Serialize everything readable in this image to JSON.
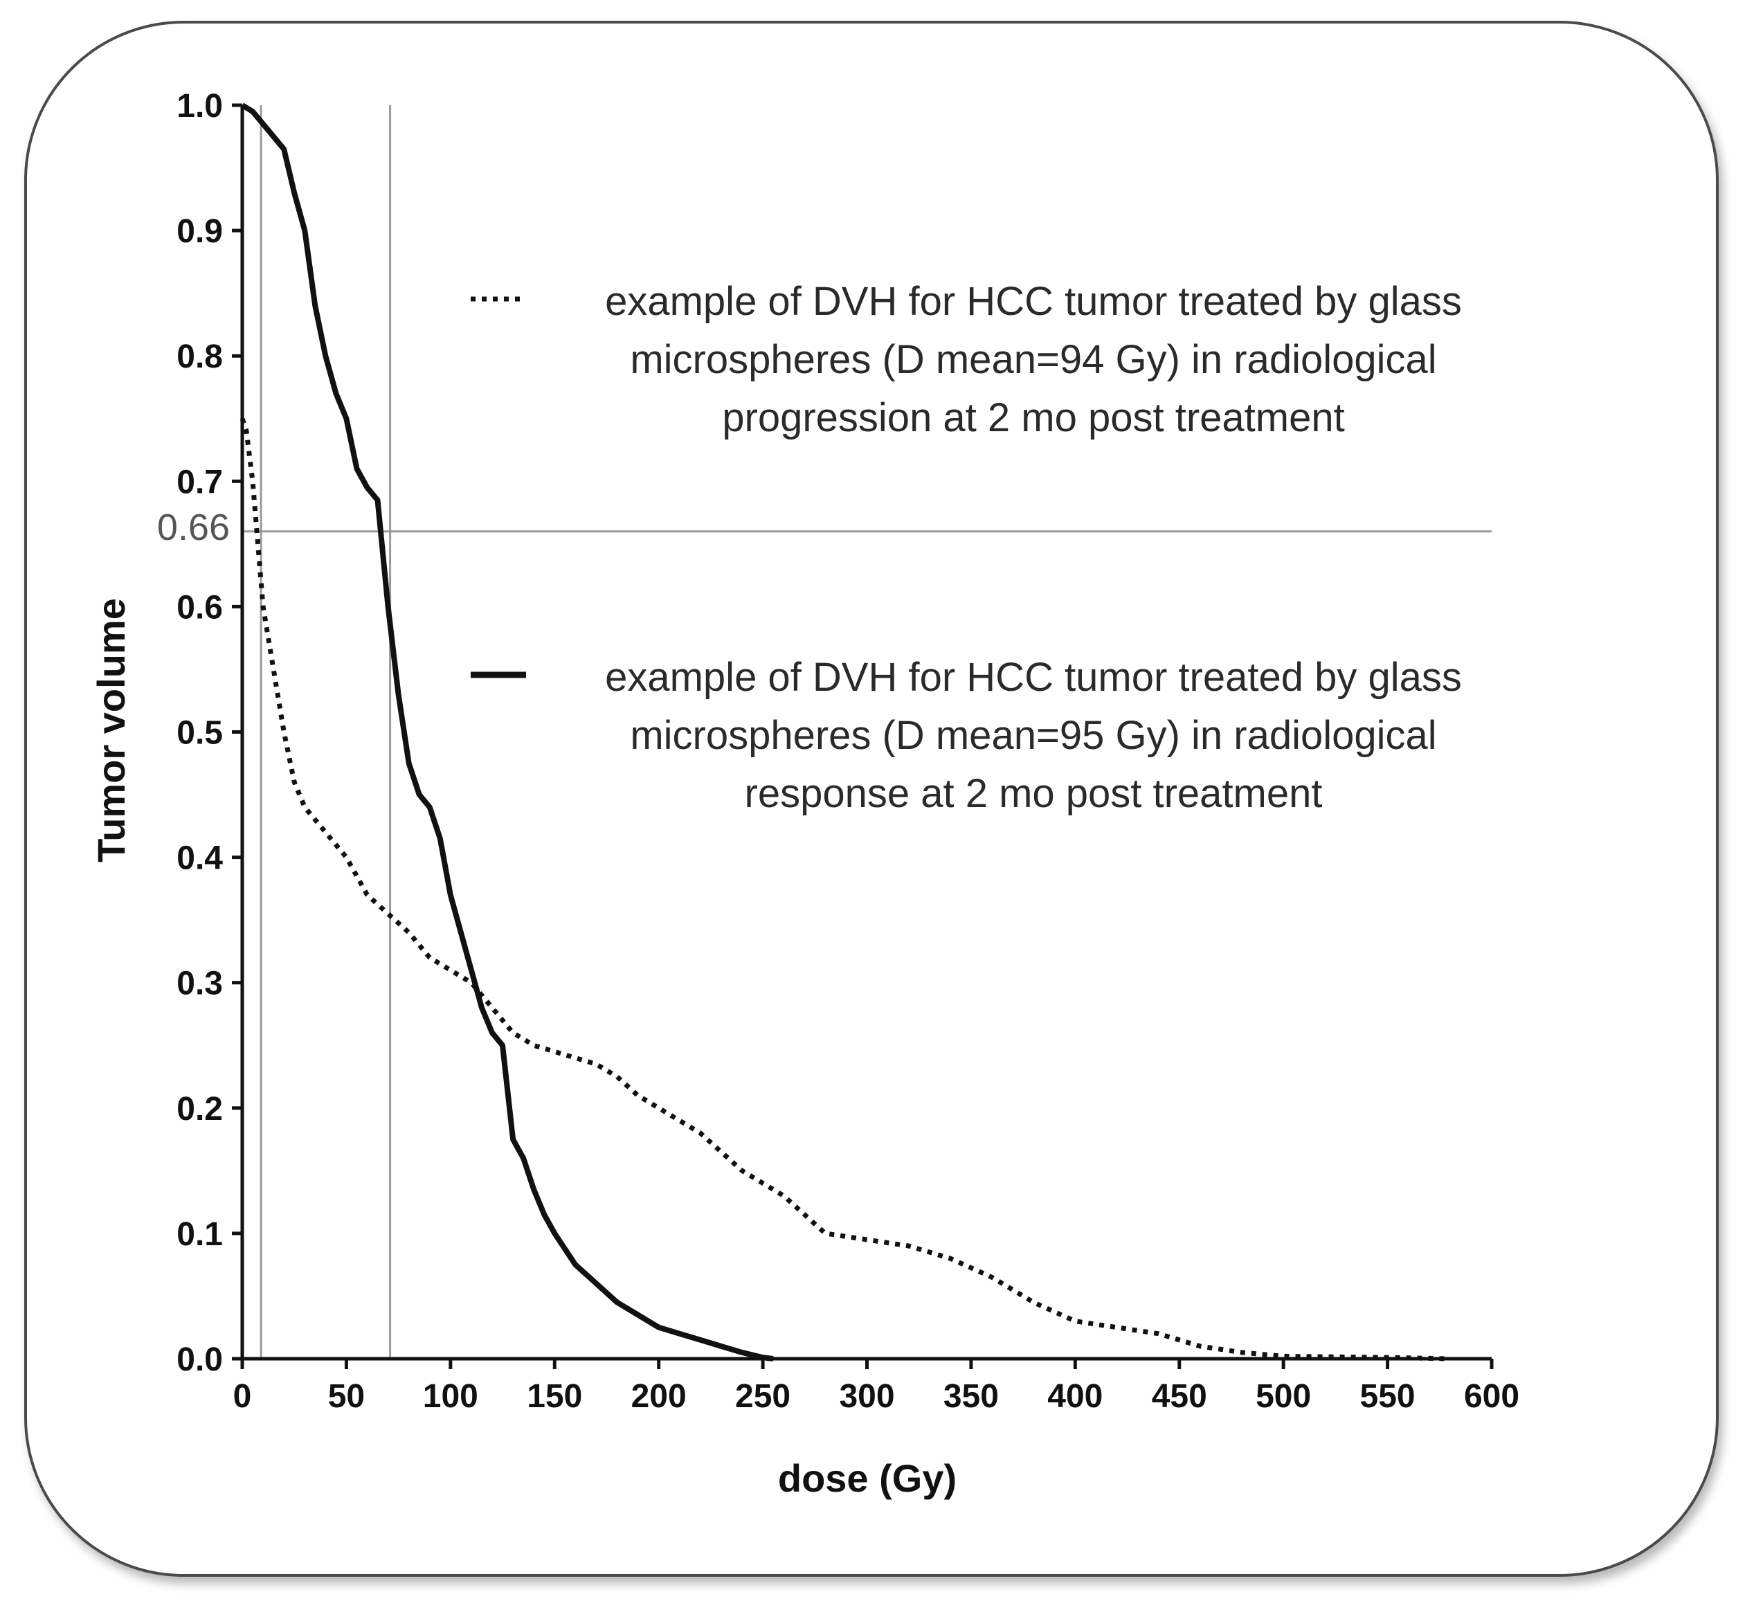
{
  "chart_data": {
    "type": "line",
    "title": "",
    "xlabel": "dose (Gy)",
    "ylabel": "Tumor volume",
    "xlim": [
      0,
      600
    ],
    "ylim": [
      0,
      1.0
    ],
    "xticks": [
      "0",
      "50",
      "100",
      "150",
      "200",
      "250",
      "300",
      "350",
      "400",
      "450",
      "500",
      "550",
      "600"
    ],
    "yticks": [
      "0.0",
      "0.1",
      "0.2",
      "0.3",
      "0.4",
      "0.5",
      "0.6",
      "0.7",
      "0.8",
      "0.9",
      "1.0"
    ],
    "grid": false,
    "reference_lines": {
      "horizontal": {
        "y": 0.66,
        "label": "0.66"
      },
      "vertical": [
        9,
        71
      ]
    },
    "series": [
      {
        "name": "progression",
        "style": "dotted",
        "legend_lines": [
          "example of DVH for HCC tumor treated by glass",
          "microspheres (D mean=94 Gy) in radiological",
          "progression at 2 mo post treatment"
        ],
        "x": [
          0,
          2,
          5,
          8,
          10,
          15,
          20,
          25,
          30,
          40,
          50,
          60,
          70,
          80,
          90,
          100,
          110,
          120,
          130,
          140,
          150,
          160,
          170,
          180,
          190,
          200,
          220,
          240,
          260,
          280,
          300,
          320,
          340,
          360,
          380,
          400,
          420,
          440,
          460,
          480,
          500,
          550,
          580
        ],
        "values": [
          0.75,
          0.74,
          0.7,
          0.64,
          0.6,
          0.55,
          0.5,
          0.46,
          0.44,
          0.42,
          0.4,
          0.37,
          0.355,
          0.34,
          0.32,
          0.31,
          0.3,
          0.28,
          0.26,
          0.25,
          0.245,
          0.24,
          0.235,
          0.225,
          0.21,
          0.2,
          0.18,
          0.15,
          0.13,
          0.1,
          0.095,
          0.09,
          0.08,
          0.065,
          0.045,
          0.03,
          0.025,
          0.02,
          0.01,
          0.005,
          0.002,
          0.001,
          0.0
        ]
      },
      {
        "name": "response",
        "style": "solid",
        "legend_lines": [
          "example of DVH for HCC tumor treated by glass",
          "microspheres (D mean=95 Gy) in radiological",
          "response at 2 mo post treatment"
        ],
        "x": [
          0,
          5,
          10,
          15,
          20,
          25,
          30,
          35,
          40,
          45,
          50,
          55,
          60,
          65,
          70,
          75,
          80,
          85,
          90,
          95,
          100,
          105,
          110,
          115,
          120,
          125,
          130,
          135,
          140,
          145,
          150,
          160,
          170,
          180,
          190,
          200,
          210,
          220,
          230,
          240,
          250,
          255
        ],
        "values": [
          1.0,
          0.995,
          0.985,
          0.975,
          0.965,
          0.93,
          0.9,
          0.84,
          0.8,
          0.77,
          0.75,
          0.71,
          0.695,
          0.685,
          0.6,
          0.53,
          0.475,
          0.45,
          0.44,
          0.415,
          0.37,
          0.34,
          0.31,
          0.28,
          0.26,
          0.25,
          0.175,
          0.16,
          0.135,
          0.115,
          0.1,
          0.075,
          0.06,
          0.045,
          0.035,
          0.025,
          0.02,
          0.015,
          0.01,
          0.005,
          0.001,
          0.0
        ]
      }
    ]
  }
}
